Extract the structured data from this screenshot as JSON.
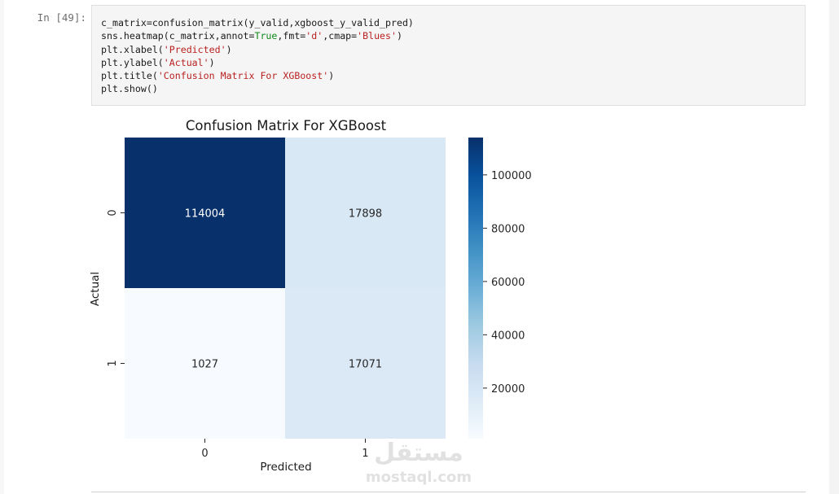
{
  "cell": {
    "prompt": "In [49]:",
    "code_lines": [
      [
        {
          "t": "c_matrix=confusion_matrix(y_valid,xgboost_y_valid_pred)",
          "c": ""
        }
      ],
      [
        {
          "t": "sns.heatmap(c_matrix,annot=",
          "c": ""
        },
        {
          "t": "True",
          "c": "kw"
        },
        {
          "t": ",fmt=",
          "c": ""
        },
        {
          "t": "'d'",
          "c": "str"
        },
        {
          "t": ",cmap=",
          "c": ""
        },
        {
          "t": "'Blues'",
          "c": "str"
        },
        {
          "t": ")",
          "c": ""
        }
      ],
      [
        {
          "t": "plt.xlabel(",
          "c": ""
        },
        {
          "t": "'Predicted'",
          "c": "str"
        },
        {
          "t": ")",
          "c": ""
        }
      ],
      [
        {
          "t": "plt.ylabel(",
          "c": ""
        },
        {
          "t": "'Actual'",
          "c": "str"
        },
        {
          "t": ")",
          "c": ""
        }
      ],
      [
        {
          "t": "plt.title(",
          "c": ""
        },
        {
          "t": "'Confusion Matrix For XGBoost'",
          "c": "str"
        },
        {
          "t": ")",
          "c": ""
        }
      ],
      [
        {
          "t": "plt.show()",
          "c": ""
        }
      ]
    ]
  },
  "chart_data": {
    "type": "heatmap",
    "title": "Confusion Matrix For XGBoost",
    "xlabel": "Predicted",
    "ylabel": "Actual",
    "x_categories": [
      "0",
      "1"
    ],
    "y_categories": [
      "0",
      "1"
    ],
    "values": [
      [
        114004,
        17898
      ],
      [
        1027,
        17071
      ]
    ],
    "colormap": "Blues",
    "colorbar": {
      "range": [
        1027,
        114004
      ],
      "ticks": [
        20000,
        40000,
        60000,
        80000,
        100000
      ],
      "tick_labels": [
        "20000",
        "40000",
        "60000",
        "80000",
        "100000"
      ]
    },
    "grid": false
  },
  "watermark": {
    "brand": "mostaql.com",
    "arabic": "مستقل"
  }
}
